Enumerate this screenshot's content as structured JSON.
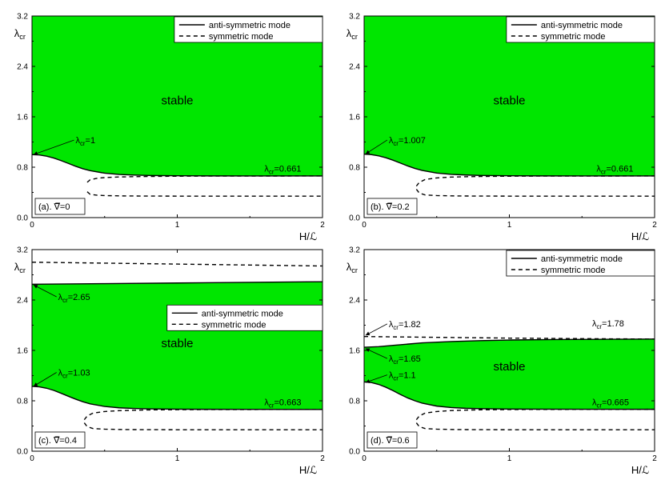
{
  "colors": {
    "stable_fill": "#00E600",
    "curve": "#000000"
  },
  "chart_data": [
    {
      "type": "line",
      "panel_label": "(a). ∇̅=0",
      "xlabel": "H/ℒ",
      "ylabel": "λ",
      "ylabel_sub": "cr",
      "xlim": [
        0,
        2
      ],
      "ylim": [
        0,
        3.2
      ],
      "xticks": [
        0,
        1,
        2
      ],
      "yticks": [
        0.0,
        0.8,
        1.6,
        2.4,
        3.2
      ],
      "legend": {
        "position": "top-right",
        "entries": [
          "anti-symmetric mode",
          "symmetric mode"
        ]
      },
      "region_label": "stable",
      "region": {
        "lower": "anti",
        "upper": "top"
      },
      "series": [
        {
          "name": "anti-symmetric mode",
          "style": "solid",
          "x": [
            0,
            0.05,
            0.1,
            0.15,
            0.2,
            0.25,
            0.3,
            0.35,
            0.4,
            0.5,
            0.6,
            0.7,
            0.8,
            1.0,
            1.2,
            1.5,
            2.0
          ],
          "y": [
            1.0,
            0.995,
            0.975,
            0.945,
            0.905,
            0.86,
            0.815,
            0.775,
            0.745,
            0.705,
            0.685,
            0.675,
            0.669,
            0.664,
            0.662,
            0.661,
            0.661
          ]
        },
        {
          "name": "symmetric mode",
          "style": "dashed",
          "branches": [
            {
              "x": [
                0.38,
                0.4,
                0.45,
                0.5,
                0.6,
                0.7,
                0.8,
                1.0,
                1.2,
                1.5,
                2.0
              ],
              "y": [
                0.56,
                0.6,
                0.625,
                0.635,
                0.645,
                0.65,
                0.653,
                0.657,
                0.659,
                0.66,
                0.661
              ]
            },
            {
              "x": [
                0.38,
                0.4,
                0.45,
                0.5,
                0.6,
                0.7,
                0.8,
                1.0,
                1.2,
                1.5,
                2.0
              ],
              "y": [
                0.41,
                0.37,
                0.355,
                0.35,
                0.345,
                0.343,
                0.342,
                0.341,
                0.34,
                0.34,
                0.34
              ]
            }
          ]
        }
      ],
      "annotations": [
        {
          "text_main": "λ",
          "text_sub": "cr",
          "text_val": "=1",
          "at": [
            0.3,
            1.18
          ],
          "arrow_to": [
            0.01,
            1.0
          ]
        },
        {
          "text_main": "λ",
          "text_sub": "cr",
          "text_val": "=0.661",
          "at": [
            1.6,
            0.73
          ]
        }
      ]
    },
    {
      "type": "line",
      "panel_label": "(b). ∇̅=0.2",
      "xlabel": "H/ℒ",
      "ylabel": "λ",
      "ylabel_sub": "cr",
      "xlim": [
        0,
        2
      ],
      "ylim": [
        0,
        3.2
      ],
      "xticks": [
        0,
        1,
        2
      ],
      "yticks": [
        0.0,
        0.8,
        1.6,
        2.4,
        3.2
      ],
      "legend": {
        "position": "top-right",
        "entries": [
          "anti-symmetric mode",
          "symmetric mode"
        ]
      },
      "region_label": "stable",
      "region": {
        "lower": "anti",
        "upper": "top"
      },
      "series": [
        {
          "name": "anti-symmetric mode",
          "style": "solid",
          "x": [
            0,
            0.05,
            0.1,
            0.15,
            0.2,
            0.25,
            0.3,
            0.35,
            0.4,
            0.5,
            0.6,
            0.7,
            0.8,
            1.0,
            1.2,
            1.5,
            2.0
          ],
          "y": [
            1.007,
            1.0,
            0.98,
            0.95,
            0.91,
            0.865,
            0.82,
            0.78,
            0.748,
            0.707,
            0.686,
            0.676,
            0.669,
            0.664,
            0.662,
            0.661,
            0.661
          ]
        },
        {
          "name": "symmetric mode",
          "style": "dashed",
          "branches": [
            {
              "x": [
                0.36,
                0.38,
                0.42,
                0.5,
                0.6,
                0.7,
                0.8,
                1.0,
                1.2,
                1.5,
                2.0
              ],
              "y": [
                0.5,
                0.56,
                0.605,
                0.63,
                0.643,
                0.649,
                0.653,
                0.657,
                0.659,
                0.66,
                0.661
              ]
            },
            {
              "x": [
                0.36,
                0.38,
                0.42,
                0.5,
                0.6,
                0.7,
                0.8,
                1.0,
                1.2,
                1.5,
                2.0
              ],
              "y": [
                0.45,
                0.39,
                0.36,
                0.35,
                0.345,
                0.343,
                0.342,
                0.341,
                0.34,
                0.34,
                0.34
              ]
            }
          ]
        }
      ],
      "annotations": [
        {
          "text_main": "λ",
          "text_sub": "cr",
          "text_val": "=1.007",
          "at": [
            0.17,
            1.18
          ],
          "arrow_to": [
            0.01,
            1.01
          ]
        },
        {
          "text_main": "λ",
          "text_sub": "cr",
          "text_val": "=0.661",
          "at": [
            1.6,
            0.73
          ]
        }
      ]
    },
    {
      "type": "line",
      "panel_label": "(c). ∇̅=0.4",
      "xlabel": "H/ℒ",
      "ylabel": "λ",
      "ylabel_sub": "cr",
      "xlim": [
        0,
        2
      ],
      "ylim": [
        0,
        3.2
      ],
      "xticks": [
        0,
        1,
        2
      ],
      "yticks": [
        0.0,
        0.8,
        1.6,
        2.4,
        3.2
      ],
      "legend": {
        "position": "right",
        "entries": [
          "anti-symmetric mode",
          "symmetric mode"
        ]
      },
      "region_label": "stable",
      "region": {
        "lower": "anti",
        "upper": "anti_upper"
      },
      "series": [
        {
          "name": "anti-symmetric mode",
          "style": "solid",
          "x": [
            0,
            0.05,
            0.1,
            0.15,
            0.2,
            0.25,
            0.3,
            0.35,
            0.4,
            0.5,
            0.6,
            0.7,
            0.8,
            1.0,
            1.2,
            1.5,
            2.0
          ],
          "y": [
            1.03,
            1.022,
            1.0,
            0.965,
            0.92,
            0.872,
            0.826,
            0.785,
            0.752,
            0.71,
            0.689,
            0.678,
            0.672,
            0.667,
            0.665,
            0.664,
            0.663
          ]
        },
        {
          "name": "anti-symmetric mode (upper)",
          "style": "solid",
          "legend": false,
          "x": [
            0,
            0.5,
            1.0,
            1.5,
            2.0
          ],
          "y": [
            2.65,
            2.66,
            2.67,
            2.68,
            2.69
          ]
        },
        {
          "name": "symmetric mode",
          "style": "dashed",
          "branches": [
            {
              "x": [
                0,
                0.5,
                1.0,
                1.5,
                2.0
              ],
              "y": [
                3.0,
                2.985,
                2.97,
                2.955,
                2.94
              ]
            },
            {
              "x": [
                0.36,
                0.38,
                0.42,
                0.5,
                0.6,
                0.7,
                0.8,
                1.0,
                1.2,
                1.5,
                2.0
              ],
              "y": [
                0.5,
                0.56,
                0.605,
                0.63,
                0.643,
                0.65,
                0.655,
                0.659,
                0.661,
                0.662,
                0.663
              ]
            },
            {
              "x": [
                0.36,
                0.38,
                0.42,
                0.5,
                0.6,
                0.7,
                0.8,
                1.0,
                1.2,
                1.5,
                2.0
              ],
              "y": [
                0.45,
                0.39,
                0.36,
                0.35,
                0.345,
                0.343,
                0.342,
                0.341,
                0.34,
                0.34,
                0.34
              ]
            }
          ]
        }
      ],
      "annotations": [
        {
          "text_main": "λ",
          "text_sub": "cr",
          "text_val": "=2.65",
          "at": [
            0.18,
            2.4
          ],
          "arrow_to": [
            0.01,
            2.64
          ]
        },
        {
          "text_main": "λ",
          "text_sub": "cr",
          "text_val": "=1.03",
          "at": [
            0.18,
            1.2
          ],
          "arrow_to": [
            0.01,
            1.03
          ]
        },
        {
          "text_main": "λ",
          "text_sub": "cr",
          "text_val": "=0.663",
          "at": [
            1.6,
            0.73
          ]
        }
      ]
    },
    {
      "type": "line",
      "panel_label": "(d). ∇̅=0.6",
      "xlabel": "H/ℒ",
      "ylabel": "λ",
      "ylabel_sub": "cr",
      "xlim": [
        0,
        2
      ],
      "ylim": [
        0,
        3.2
      ],
      "xticks": [
        0,
        1,
        2
      ],
      "yticks": [
        0.0,
        0.8,
        1.6,
        2.4,
        3.2
      ],
      "legend": {
        "position": "top-right",
        "entries": [
          "anti-symmetric mode",
          "symmetric mode"
        ]
      },
      "region_label": "stable",
      "region": {
        "lower": "anti",
        "upper": "anti_upper"
      },
      "series": [
        {
          "name": "anti-symmetric mode",
          "style": "solid",
          "x": [
            0,
            0.05,
            0.1,
            0.15,
            0.2,
            0.25,
            0.3,
            0.35,
            0.4,
            0.5,
            0.6,
            0.7,
            0.8,
            1.0,
            1.2,
            1.5,
            2.0
          ],
          "y": [
            1.1,
            1.09,
            1.06,
            1.015,
            0.96,
            0.9,
            0.845,
            0.8,
            0.762,
            0.716,
            0.693,
            0.681,
            0.675,
            0.669,
            0.667,
            0.666,
            0.665
          ]
        },
        {
          "name": "anti-symmetric mode (upper)",
          "style": "solid",
          "legend": false,
          "x": [
            0,
            0.1,
            0.2,
            0.3,
            0.4,
            0.6,
            0.8,
            1.0,
            1.3,
            1.6,
            2.0
          ],
          "y": [
            1.65,
            1.66,
            1.68,
            1.7,
            1.72,
            1.74,
            1.755,
            1.765,
            1.772,
            1.776,
            1.78
          ]
        },
        {
          "name": "symmetric mode",
          "style": "dashed",
          "branches": [
            {
              "x": [
                0,
                0.2,
                0.4,
                0.6,
                0.8,
                1.0,
                1.3,
                1.6,
                2.0
              ],
              "y": [
                1.82,
                1.815,
                1.81,
                1.805,
                1.8,
                1.795,
                1.79,
                1.785,
                1.78
              ]
            },
            {
              "x": [
                0.36,
                0.38,
                0.42,
                0.5,
                0.6,
                0.7,
                0.8,
                1.0,
                1.2,
                1.5,
                2.0
              ],
              "y": [
                0.5,
                0.56,
                0.605,
                0.63,
                0.645,
                0.652,
                0.657,
                0.661,
                0.663,
                0.664,
                0.665
              ]
            },
            {
              "x": [
                0.36,
                0.38,
                0.42,
                0.5,
                0.6,
                0.7,
                0.8,
                1.0,
                1.2,
                1.5,
                2.0
              ],
              "y": [
                0.45,
                0.39,
                0.36,
                0.35,
                0.345,
                0.343,
                0.342,
                0.341,
                0.34,
                0.34,
                0.34
              ]
            }
          ]
        }
      ],
      "annotations": [
        {
          "text_main": "λ",
          "text_sub": "cr",
          "text_val": "=1.82",
          "at": [
            0.17,
            1.97
          ],
          "arrow_to": [
            0.01,
            1.84
          ]
        },
        {
          "text_main": "λ",
          "text_sub": "cr",
          "text_val": "=1.65",
          "at": [
            0.17,
            1.42
          ],
          "arrow_to": [
            0.01,
            1.63
          ]
        },
        {
          "text_main": "λ",
          "text_sub": "cr",
          "text_val": "=1.1",
          "at": [
            0.17,
            1.16
          ],
          "arrow_to": [
            0.01,
            1.09
          ]
        },
        {
          "text_main": "λ",
          "text_sub": "cr",
          "text_val": "=1.78",
          "at": [
            1.57,
            1.98
          ]
        },
        {
          "text_main": "λ",
          "text_sub": "cr",
          "text_val": "=0.665",
          "at": [
            1.57,
            0.73
          ]
        }
      ]
    }
  ]
}
